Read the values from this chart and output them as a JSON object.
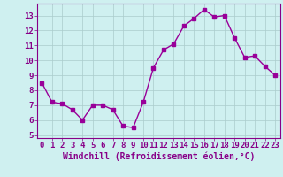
{
  "x": [
    0,
    1,
    2,
    3,
    4,
    5,
    6,
    7,
    8,
    9,
    10,
    11,
    12,
    13,
    14,
    15,
    16,
    17,
    18,
    19,
    20,
    21,
    22,
    23
  ],
  "y": [
    8.5,
    7.2,
    7.1,
    6.7,
    6.0,
    7.0,
    7.0,
    6.7,
    5.6,
    5.5,
    7.2,
    9.5,
    10.7,
    11.1,
    12.3,
    12.8,
    13.4,
    12.9,
    13.0,
    11.5,
    10.2,
    10.3,
    9.6,
    9.0
  ],
  "line_color": "#990099",
  "marker": "s",
  "marker_size": 2.5,
  "linewidth": 1.0,
  "background_color": "#cff0f0",
  "grid_color": "#aacccc",
  "xlabel": "Windchill (Refroidissement éolien,°C)",
  "xlabel_fontsize": 7,
  "tick_color": "#880088",
  "tick_fontsize": 6.5,
  "xlim": [
    -0.5,
    23.5
  ],
  "ylim": [
    4.8,
    13.8
  ],
  "yticks": [
    5,
    6,
    7,
    8,
    9,
    10,
    11,
    12,
    13
  ],
  "xticks": [
    0,
    1,
    2,
    3,
    4,
    5,
    6,
    7,
    8,
    9,
    10,
    11,
    12,
    13,
    14,
    15,
    16,
    17,
    18,
    19,
    20,
    21,
    22,
    23
  ]
}
